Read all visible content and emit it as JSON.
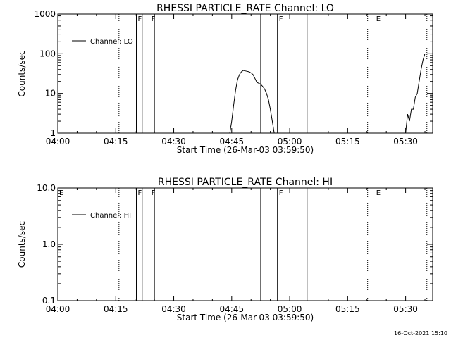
{
  "chart_data": [
    {
      "type": "line",
      "title": "RHESSI PARTICLE_RATE Channel: LO",
      "xlabel": "Start Time (26-Mar-03 03:59:50)",
      "ylabel": "Counts/sec",
      "xlim": [
        "04:00",
        "05:37"
      ],
      "ylim": [
        1,
        1000
      ],
      "yscale": "log",
      "xtick_labels": [
        "04:00",
        "04:15",
        "04:30",
        "04:45",
        "05:00",
        "05:15",
        "05:30"
      ],
      "ytick_labels": [
        "1",
        "10",
        "100",
        "1000"
      ],
      "legend": {
        "placement": "top-left",
        "entries": [
          "Channel: LO"
        ]
      },
      "flags": [
        {
          "time": "04:20:20",
          "label": "F"
        },
        {
          "time": "04:23:50",
          "label": "F"
        },
        {
          "time": "04:56:50",
          "label": "F"
        },
        {
          "time": "05:22:00",
          "label": "E"
        }
      ],
      "solid_markers": [
        "04:20:20",
        "04:21:50",
        "04:25:00",
        "04:52:30",
        "04:56:50",
        "05:04:30"
      ],
      "dotted_markers": [
        "04:15:50",
        "05:20:10",
        "05:35:30"
      ],
      "series": [
        {
          "name": "Channel: LO",
          "x": [
            "04:44:30",
            "04:45:00",
            "04:45:30",
            "04:46:00",
            "04:46:30",
            "04:47:00",
            "04:47:30",
            "04:48:00",
            "04:48:30",
            "04:49:00",
            "04:49:30",
            "04:50:00",
            "04:50:30",
            "04:51:00",
            "04:51:30",
            "04:52:00",
            "04:52:30",
            "04:53:00",
            "04:53:30",
            "04:54:00",
            "04:54:30",
            "04:55:00",
            "04:55:30",
            "04:56:00"
          ],
          "y": [
            1,
            2,
            5,
            12,
            22,
            30,
            35,
            38,
            37,
            36,
            35,
            33,
            30,
            24,
            19,
            18,
            17,
            15,
            13,
            10,
            7,
            4,
            2,
            1
          ]
        },
        {
          "name": "Channel: LO",
          "x": [
            "05:30:00",
            "05:30:30",
            "05:31:00",
            "05:31:30",
            "05:32:00",
            "05:32:30",
            "05:33:00",
            "05:33:30",
            "05:34:00",
            "05:34:30",
            "05:35:00"
          ],
          "y": [
            1,
            3,
            2,
            4,
            4,
            8,
            10,
            20,
            40,
            70,
            100
          ]
        }
      ]
    },
    {
      "type": "line",
      "title": "RHESSI PARTICLE_RATE Channel: HI",
      "xlabel": "Start Time (26-Mar-03 03:59:50)",
      "ylabel": "Counts/sec",
      "xlim": [
        "04:00",
        "05:37"
      ],
      "ylim": [
        0.1,
        10
      ],
      "yscale": "log",
      "xtick_labels": [
        "04:00",
        "04:15",
        "04:30",
        "04:45",
        "05:00",
        "05:15",
        "05:30"
      ],
      "ytick_labels": [
        "0.1",
        "1.0",
        "10.0"
      ],
      "legend": {
        "placement": "top-left",
        "entries": [
          "Channel: HI"
        ]
      },
      "flags": [
        {
          "time": "04:00:00",
          "label": "E"
        },
        {
          "time": "04:20:20",
          "label": "F"
        },
        {
          "time": "04:23:50",
          "label": "F"
        },
        {
          "time": "04:56:50",
          "label": "F"
        },
        {
          "time": "05:22:00",
          "label": "E"
        }
      ],
      "solid_markers": [
        "04:20:20",
        "04:21:50",
        "04:25:00",
        "04:52:30",
        "04:56:50",
        "05:04:30"
      ],
      "dotted_markers": [
        "04:15:50",
        "05:20:10",
        "05:35:30"
      ],
      "series": []
    }
  ],
  "footer": {
    "timestamp": "16-Oct-2021 15:10"
  }
}
